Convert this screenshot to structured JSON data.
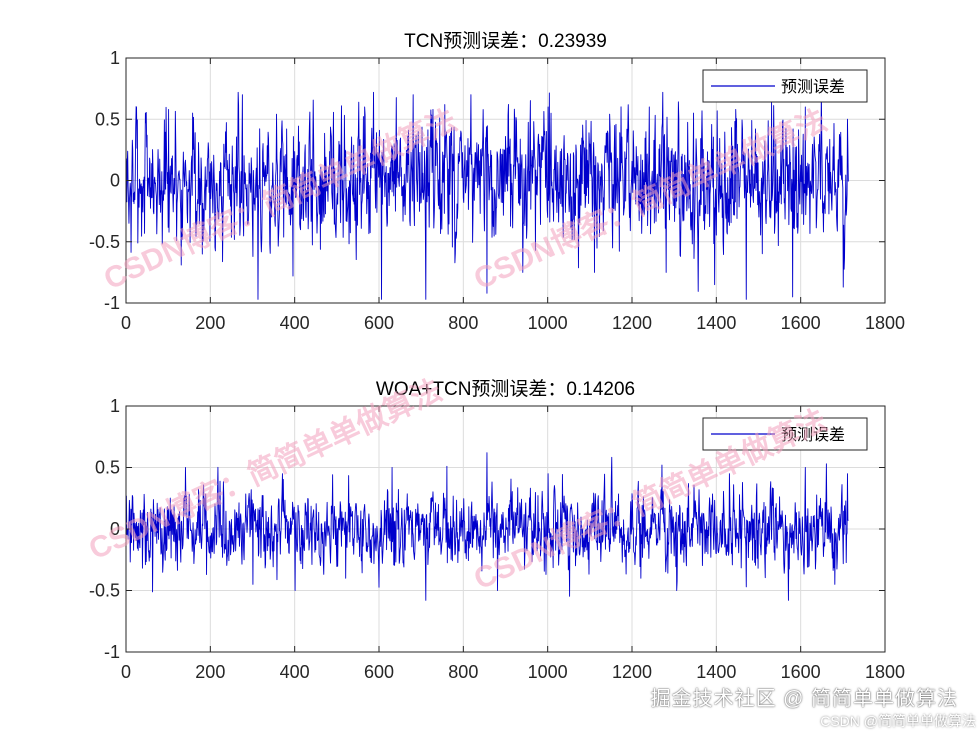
{
  "chart_data": [
    {
      "type": "line",
      "title": "TCN预测误差：0.23939",
      "xlim": [
        0,
        1800
      ],
      "ylim": [
        -1,
        1
      ],
      "xticks": [
        "0",
        "200",
        "400",
        "600",
        "800",
        "1000",
        "1200",
        "1400",
        "1600",
        "1800"
      ],
      "yticks": [
        "-1",
        "-0.5",
        "0",
        "0.5",
        "1"
      ],
      "grid": true,
      "legend_position": "top-right",
      "series": [
        {
          "name": "预测误差",
          "color": "#0000cc",
          "n_points": 1713,
          "seed": 7,
          "amplitude": 0.26,
          "clip": [
            -0.97,
            0.72
          ],
          "key_points": [
            [
              0,
              0.18
            ],
            [
              45,
              0.55
            ],
            [
              100,
              0.58
            ],
            [
              180,
              -0.6
            ],
            [
              275,
              0.7
            ],
            [
              300,
              -0.62
            ],
            [
              395,
              -0.78
            ],
            [
              510,
              0.61
            ],
            [
              565,
              0.6
            ],
            [
              605,
              -0.97
            ],
            [
              680,
              0.7
            ],
            [
              710,
              -0.97
            ],
            [
              755,
              0.62
            ],
            [
              855,
              -0.92
            ],
            [
              940,
              -0.75
            ],
            [
              1000,
              0.6
            ],
            [
              1110,
              -0.75
            ],
            [
              1240,
              0.6
            ],
            [
              1280,
              -0.75
            ],
            [
              1345,
              0.55
            ],
            [
              1395,
              -0.85
            ],
            [
              1445,
              0.58
            ],
            [
              1470,
              -0.97
            ],
            [
              1530,
              0.65
            ],
            [
              1580,
              -0.95
            ],
            [
              1610,
              0.6
            ],
            [
              1700,
              -0.87
            ],
            [
              1710,
              0.5
            ]
          ]
        }
      ]
    },
    {
      "type": "line",
      "title": "WOA+TCN预测误差：0.14206",
      "xlim": [
        0,
        1800
      ],
      "ylim": [
        -1,
        1
      ],
      "xticks": [
        "0",
        "200",
        "400",
        "600",
        "800",
        "1000",
        "1200",
        "1400",
        "1600",
        "1800"
      ],
      "yticks": [
        "-1",
        "-0.5",
        "0",
        "0.5",
        "1"
      ],
      "grid": true,
      "legend_position": "top-right",
      "series": [
        {
          "name": "预测误差",
          "color": "#0000cc",
          "n_points": 1713,
          "seed": 13,
          "amplitude": 0.15,
          "clip": [
            -0.58,
            0.62
          ],
          "key_points": [
            [
              0,
              0.27
            ],
            [
              140,
              0.5
            ],
            [
              190,
              -0.37
            ],
            [
              300,
              -0.45
            ],
            [
              370,
              0.45
            ],
            [
              400,
              -0.5
            ],
            [
              520,
              -0.4
            ],
            [
              630,
              0.5
            ],
            [
              710,
              -0.58
            ],
            [
              760,
              0.51
            ],
            [
              855,
              0.62
            ],
            [
              880,
              -0.5
            ],
            [
              1000,
              0.45
            ],
            [
              1150,
              0.42
            ],
            [
              1220,
              -0.4
            ],
            [
              1270,
              0.52
            ],
            [
              1305,
              -0.5
            ],
            [
              1430,
              0.45
            ],
            [
              1470,
              -0.47
            ],
            [
              1570,
              -0.58
            ],
            [
              1610,
              0.5
            ],
            [
              1660,
              0.53
            ],
            [
              1680,
              -0.45
            ],
            [
              1710,
              0.45
            ]
          ]
        }
      ]
    }
  ],
  "watermarks": {
    "tile": "CSDN博客：简简单单做算法",
    "footer": "掘金技术社区 @ 简简单单做算法",
    "footer_sub": "CSDN @简简单单做算法"
  }
}
